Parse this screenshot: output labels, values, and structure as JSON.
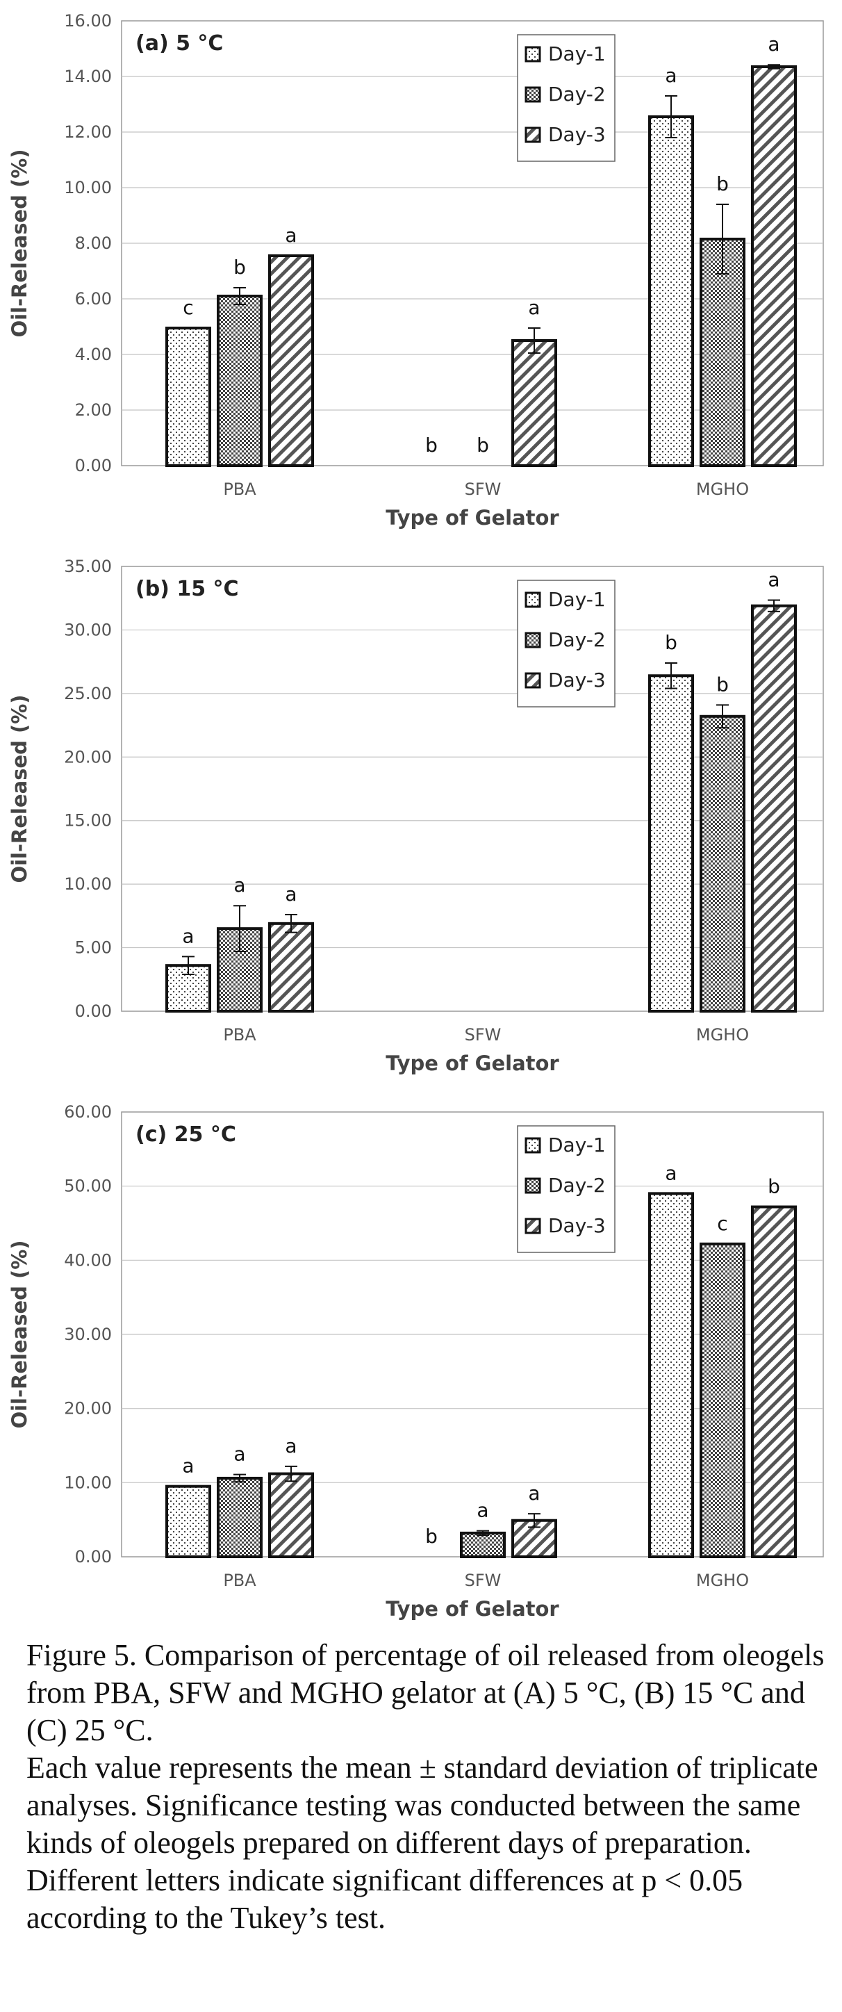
{
  "chart_data": [
    {
      "type": "bar",
      "title": "(a) 5 °C",
      "xlabel": "Type of Gelator",
      "ylabel": "Oil-Released (%)",
      "ylim": [
        0,
        16
      ],
      "yticks": [
        "0.00",
        "2.00",
        "4.00",
        "6.00",
        "8.00",
        "10.00",
        "12.00",
        "14.00",
        "16.00"
      ],
      "categories": [
        "PBA",
        "SFW",
        "MGHO"
      ],
      "legend_position": "top-right",
      "grid": true,
      "series": [
        {
          "name": "Day-1",
          "pattern": "dots",
          "values": [
            4.95,
            0,
            12.55
          ],
          "errors": [
            0,
            0,
            0.75
          ],
          "letters": [
            "c",
            "b",
            "a"
          ]
        },
        {
          "name": "Day-2",
          "pattern": "checker",
          "values": [
            6.1,
            0,
            8.15
          ],
          "errors": [
            0.3,
            0,
            1.25
          ],
          "letters": [
            "b",
            "b",
            "b"
          ]
        },
        {
          "name": "Day-3",
          "pattern": "diagonal",
          "values": [
            7.55,
            4.5,
            14.35
          ],
          "errors": [
            0,
            0.45,
            0.07
          ],
          "letters": [
            "a",
            "a",
            "a"
          ]
        }
      ]
    },
    {
      "type": "bar",
      "title": "(b) 15 °C",
      "xlabel": "Type of Gelator",
      "ylabel": "Oil-Released (%)",
      "ylim": [
        0,
        35
      ],
      "yticks": [
        "0.00",
        "5.00",
        "10.00",
        "15.00",
        "20.00",
        "25.00",
        "30.00",
        "35.00"
      ],
      "categories": [
        "PBA",
        "SFW",
        "MGHO"
      ],
      "legend_position": "top-right",
      "grid": true,
      "series": [
        {
          "name": "Day-1",
          "pattern": "dots",
          "values": [
            3.6,
            0,
            26.4
          ],
          "errors": [
            0.7,
            0,
            1.0
          ],
          "letters": [
            "a",
            "",
            "b"
          ]
        },
        {
          "name": "Day-2",
          "pattern": "checker",
          "values": [
            6.5,
            0,
            23.2
          ],
          "errors": [
            1.8,
            0,
            0.9
          ],
          "letters": [
            "a",
            "",
            "b"
          ]
        },
        {
          "name": "Day-3",
          "pattern": "diagonal",
          "values": [
            6.9,
            0,
            31.9
          ],
          "errors": [
            0.7,
            0,
            0.45
          ],
          "letters": [
            "a",
            "",
            "a"
          ]
        }
      ]
    },
    {
      "type": "bar",
      "title": "(c) 25 °C",
      "xlabel": "Type of Gelator",
      "ylabel": "Oil-Released (%)",
      "ylim": [
        0,
        60
      ],
      "yticks": [
        "0.00",
        "10.00",
        "20.00",
        "30.00",
        "40.00",
        "50.00",
        "60.00"
      ],
      "categories": [
        "PBA",
        "SFW",
        "MGHO"
      ],
      "legend_position": "top-right",
      "grid": true,
      "series": [
        {
          "name": "Day-1",
          "pattern": "dots",
          "values": [
            9.5,
            0,
            49.0
          ],
          "errors": [
            0,
            0,
            0
          ],
          "letters": [
            "a",
            "b",
            "a"
          ]
        },
        {
          "name": "Day-2",
          "pattern": "checker",
          "values": [
            10.6,
            3.2,
            42.2
          ],
          "errors": [
            0.5,
            0.3,
            0
          ],
          "letters": [
            "a",
            "a",
            "c"
          ]
        },
        {
          "name": "Day-3",
          "pattern": "diagonal",
          "values": [
            11.2,
            4.9,
            47.2
          ],
          "errors": [
            1.0,
            0.9,
            0
          ],
          "letters": [
            "a",
            "a",
            "b"
          ]
        }
      ]
    }
  ],
  "caption": {
    "line1": "Figure 5. Comparison of percentage of oil released from oleogels from PBA, SFW and MGHO gelator at (A) 5 °C, (B) 15 °C and (C) 25 °C.",
    "line2": "Each value represents the mean ± standard deviation of triplicate analyses. Significance testing was conducted between the same kinds of oleogels prepared on different days of preparation. Different letters indicate significant differences at p < 0.05 according to the Tukey’s test."
  }
}
